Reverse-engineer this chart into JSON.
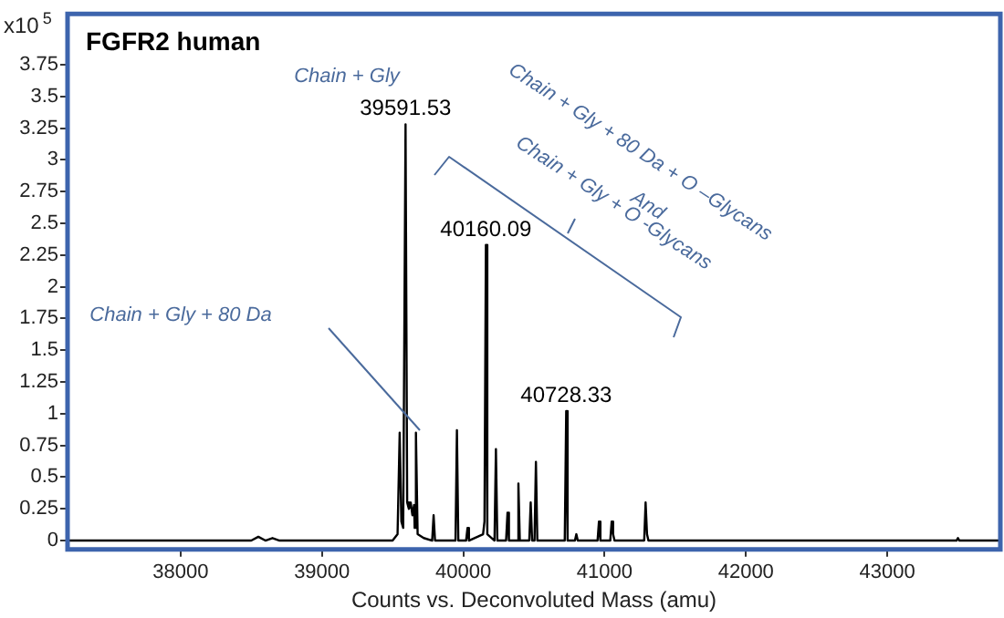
{
  "chart_data": {
    "type": "line",
    "title": "FGFR2 human",
    "xlabel": "Counts vs. Deconvoluted Mass (amu)",
    "ylabel": "x10$^{5}$",
    "xlim": [
      37200,
      43800
    ],
    "xticks": [
      38000,
      39000,
      40000,
      41000,
      42000,
      43000
    ],
    "ylim": [
      -0.07,
      4.15
    ],
    "yticks": [
      0,
      0.25,
      0.5,
      0.75,
      1,
      1.25,
      1.5,
      1.75,
      2,
      2.25,
      2.5,
      2.75,
      3,
      3.25,
      3.5,
      3.75
    ],
    "marker": "none",
    "legend": false,
    "series": [
      {
        "color": "#000000",
        "x": [
          37200,
          38500,
          38550,
          38600,
          38650,
          38700,
          39500,
          39535,
          39550,
          39562,
          39575,
          39591.53,
          39603,
          39615,
          39628,
          39640,
          39652,
          39656,
          39665,
          39677,
          39720,
          39780,
          39790,
          39800,
          39945,
          39955,
          39965,
          40020,
          40030,
          40040,
          40140,
          40150,
          40160.09,
          40170,
          40221,
          40231,
          40241,
          40303,
          40313,
          40323,
          40380,
          40390,
          40400,
          40467,
          40477,
          40487,
          40504,
          40514,
          40524,
          40718,
          40728.33,
          40738,
          40790,
          40800,
          40810,
          40950,
          40960,
          40970,
          41040,
          41050,
          41060,
          41070,
          41280,
          41290,
          41300,
          41310,
          43490,
          43500,
          43510,
          43800
        ],
        "values": [
          0,
          0,
          0.03,
          0,
          0.02,
          0,
          0,
          0.05,
          0.85,
          0.15,
          0.1,
          3.28,
          0.3,
          0.25,
          0.3,
          0.2,
          0.28,
          0.1,
          0.85,
          0.05,
          0.02,
          0,
          0.2,
          0,
          0,
          0.87,
          0,
          0,
          0.1,
          0,
          0.05,
          0.15,
          2.33,
          0.05,
          0,
          0.72,
          0,
          0,
          0.22,
          0,
          0,
          0.45,
          0,
          0,
          0.3,
          0,
          0,
          0.62,
          0,
          0,
          1.02,
          0,
          0,
          0.05,
          0,
          0,
          0.15,
          0,
          0,
          0.15,
          0.05,
          0,
          0,
          0.3,
          0.05,
          0,
          0,
          0.02,
          0,
          0
        ]
      }
    ],
    "annotations": [
      {
        "text": "39591.53",
        "x": 39591.53,
        "y": 3.28
      },
      {
        "text": "40160.09",
        "x": 40160.09,
        "y": 2.33
      },
      {
        "text": "40728.33",
        "x": 40728.33,
        "y": 1.02
      },
      "Chain + Gly",
      "Chain + Gly + 80 Da",
      "Chain + Gly + 80 Da + O –Glycans",
      "And",
      "Chain + Gly + O -Glycans"
    ]
  }
}
